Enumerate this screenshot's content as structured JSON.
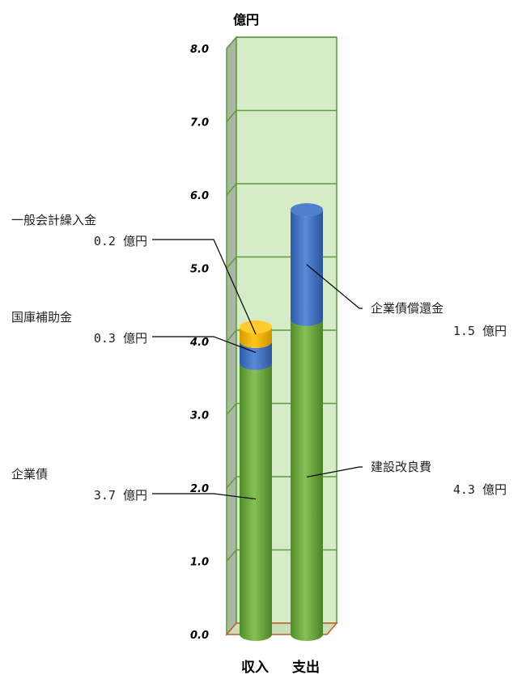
{
  "chart_data": {
    "type": "bar",
    "stacked": true,
    "unit_label": "億円",
    "ylim": [
      0,
      8
    ],
    "yticks": [
      "0.0",
      "1.0",
      "2.0",
      "3.0",
      "4.0",
      "5.0",
      "6.0",
      "7.0",
      "8.0"
    ],
    "categories": [
      "収入",
      "支出"
    ],
    "grid": true,
    "colors": {
      "green": "#6aab3a",
      "blue": "#3f6fc3",
      "orange": "#f2b000",
      "wall": "#d6ecc8",
      "wall_line": "#5f9a3d"
    },
    "bars": [
      {
        "category": "収入",
        "segments": [
          {
            "name": "企業債",
            "value": 3.7,
            "color": "green",
            "label_name": "企業債",
            "label_value": "3.7 億円"
          },
          {
            "name": "国庫補助金",
            "value": 0.3,
            "color": "blue",
            "label_name": "国庫補助金",
            "label_value": "0.3 億円"
          },
          {
            "name": "一般会計繰入金",
            "value": 0.2,
            "color": "orange",
            "label_name": "一般会計繰入金",
            "label_value": "0.2 億円"
          }
        ]
      },
      {
        "category": "支出",
        "segments": [
          {
            "name": "建設改良費",
            "value": 4.3,
            "color": "green",
            "label_name": "建設改良費",
            "label_value": "4.3 億円"
          },
          {
            "name": "企業債償還金",
            "value": 1.5,
            "color": "blue",
            "label_name": "企業債償還金",
            "label_value": "1.5 億円"
          }
        ]
      }
    ]
  }
}
